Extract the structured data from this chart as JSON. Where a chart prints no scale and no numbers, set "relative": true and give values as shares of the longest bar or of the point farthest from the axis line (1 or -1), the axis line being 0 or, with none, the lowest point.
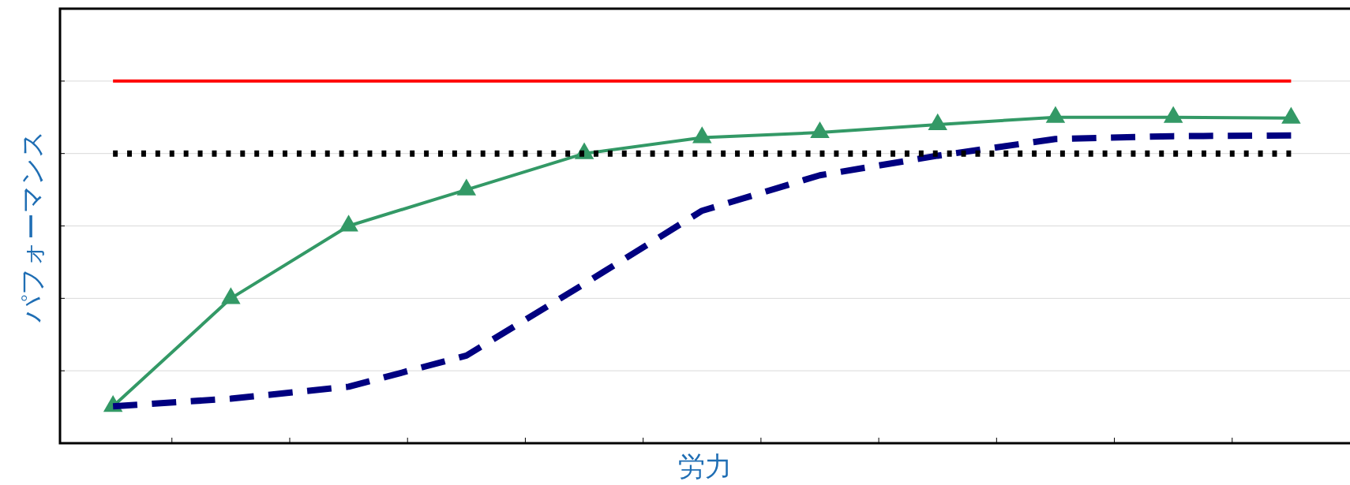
{
  "chart_data": {
    "type": "line",
    "xlabel": "労力",
    "ylabel": "パフォーマンス",
    "relative": true,
    "grid": "y",
    "categories": [
      null,
      null,
      null,
      null,
      null,
      null,
      null,
      null,
      null,
      null,
      null
    ],
    "series": [
      {
        "color": "#ff0000",
        "line_style": "solid",
        "marker": "none",
        "values": [
          1,
          1,
          1,
          1,
          1,
          1,
          1,
          1,
          1,
          1,
          1
        ]
      },
      {
        "color": "#000000",
        "line_style": "dotted",
        "marker": "none",
        "values": [
          0.8,
          0.8,
          0.8,
          0.8,
          0.8,
          0.8,
          0.8,
          0.8,
          0.8,
          0.8,
          0.8
        ]
      },
      {
        "color": "#000080",
        "line_style": "dashed",
        "marker": "none",
        "values": [
          0.102,
          0.123,
          0.156,
          0.242,
          0.44,
          0.642,
          0.74,
          0.794,
          0.84,
          0.848,
          0.85
        ]
      },
      {
        "color": "#339966",
        "line_style": "solid",
        "marker": "triangle",
        "values": [
          0.102,
          0.4,
          0.6,
          0.7,
          0.8,
          0.844,
          0.858,
          0.88,
          0.9,
          0.9,
          0.898
        ]
      }
    ]
  }
}
